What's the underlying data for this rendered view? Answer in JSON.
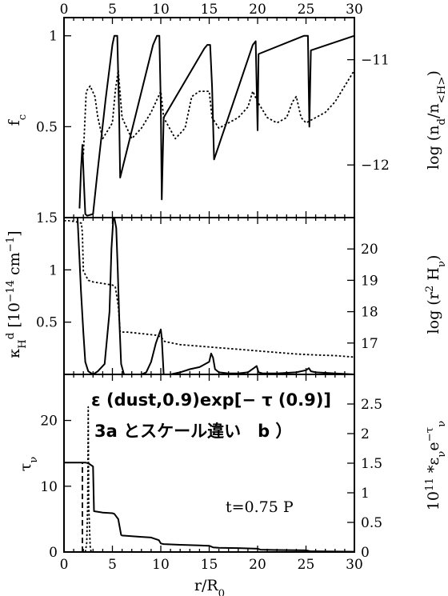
{
  "chart_data": [
    {
      "type": "line",
      "xlim": [
        0,
        30
      ],
      "top_ticks": [
        "0",
        "5",
        "10",
        "15",
        "20",
        "25",
        "30"
      ],
      "xlabel_left": "f",
      "xlabel_left_sub": "c",
      "ylabel_right": "log (n",
      "ylabel_right_sub": "d",
      "ylabel_right_tail": "/n",
      "ylabel_right_sub2": "<H>",
      "ylabel_right_close": ")",
      "ylim_left": [
        0,
        1.1
      ],
      "ylim_right": [
        -12.5,
        -10.6
      ],
      "yticks_left": [
        {
          "v": 0.5,
          "label": "0.5"
        },
        {
          "v": 1.0,
          "label": "1"
        }
      ],
      "yticks_right": [
        {
          "v": -11,
          "label": "−11"
        },
        {
          "v": -12,
          "label": "−12"
        }
      ],
      "series": [
        {
          "style": "solid",
          "axis": "left",
          "x": [
            1.6,
            1.75,
            1.9,
            2.05,
            2.2,
            2.4,
            3.0,
            3.4,
            4.3,
            5.0,
            5.2,
            5.5,
            5.7,
            5.8,
            9.2,
            9.6,
            9.85,
            10.0,
            10.1,
            10.3,
            14.5,
            14.8,
            15.1,
            15.3,
            15.5,
            19.5,
            19.8,
            20.0,
            20.1,
            24.8,
            25.2,
            25.35,
            25.5,
            30.0
          ],
          "y": [
            0.05,
            0.26,
            0.4,
            0.2,
            0.02,
            0.01,
            0.02,
            0.22,
            0.65,
            0.95,
            1.0,
            1.0,
            0.55,
            0.22,
            0.95,
            1.0,
            1.0,
            0.62,
            0.1,
            0.55,
            0.93,
            0.95,
            0.95,
            0.72,
            0.32,
            0.95,
            0.97,
            0.48,
            0.9,
            1.0,
            1.0,
            0.5,
            0.92,
            1.0
          ]
        },
        {
          "style": "dotted",
          "axis": "right",
          "x": [
            2.0,
            2.3,
            2.7,
            3.2,
            3.5,
            4.0,
            5.0,
            5.3,
            5.6,
            6.0,
            7.0,
            8.0,
            9.0,
            10.0,
            10.3,
            11.5,
            12.5,
            13.2,
            14.0,
            15.0,
            15.3,
            16.0,
            17.0,
            18.0,
            19.0,
            19.5,
            20.0,
            21.0,
            22.0,
            23.0,
            23.6,
            24.0,
            24.5,
            25.0,
            26.0,
            27.0,
            28.0,
            29.0,
            30.0
          ],
          "y": [
            -11.9,
            -11.3,
            -11.25,
            -11.35,
            -11.55,
            -11.75,
            -11.6,
            -11.3,
            -11.1,
            -11.55,
            -11.75,
            -11.65,
            -11.5,
            -11.3,
            -11.55,
            -11.75,
            -11.65,
            -11.35,
            -11.3,
            -11.3,
            -11.55,
            -11.65,
            -11.6,
            -11.55,
            -11.45,
            -11.3,
            -11.4,
            -11.55,
            -11.6,
            -11.55,
            -11.4,
            -11.35,
            -11.55,
            -11.6,
            -11.55,
            -11.5,
            -11.4,
            -11.25,
            -11.1
          ]
        }
      ]
    },
    {
      "type": "line",
      "xlim": [
        0,
        30
      ],
      "ylabel_left": "κ",
      "ylabel_left_sup": "d",
      "ylabel_left_sub": "H",
      "ylabel_left_unit": "[10",
      "ylabel_left_unit_sup": "−14",
      "ylabel_left_unit_tail": "cm",
      "ylabel_left_unit_sup2": "−1",
      "ylabel_left_close": "]",
      "ylabel_right": "log (r",
      "ylabel_right_sup": "2",
      "ylabel_right_tail": "H",
      "ylabel_right_sub": "ν",
      "ylabel_right_close": ")",
      "ylim_left": [
        0,
        1.5
      ],
      "ylim_right": [
        16,
        21
      ],
      "yticks_left": [
        {
          "v": 0.5,
          "label": "0.5"
        },
        {
          "v": 1.0,
          "label": "1"
        },
        {
          "v": 1.5,
          "label": "1.5"
        }
      ],
      "yticks_right": [
        {
          "v": 17,
          "label": "17"
        },
        {
          "v": 18,
          "label": "18"
        },
        {
          "v": 19,
          "label": "19"
        },
        {
          "v": 20,
          "label": "20"
        }
      ],
      "series": [
        {
          "style": "solid",
          "axis": "left",
          "x": [
            1.4,
            1.6,
            1.75,
            2.0,
            2.2,
            2.5,
            3.0,
            3.5,
            4.2,
            4.7,
            4.9,
            5.1,
            5.2,
            5.4,
            5.55,
            5.7,
            5.9,
            6.2,
            7.0,
            8.0,
            8.5,
            9.0,
            9.5,
            9.8,
            10.0,
            10.1,
            10.3,
            11.0,
            12.0,
            13.0,
            14.0,
            15.0,
            15.2,
            15.4,
            15.6,
            16.0,
            17.0,
            18.0,
            19.0,
            19.6,
            19.9,
            20.1,
            20.5,
            22.0,
            24.0,
            25.0,
            25.3,
            25.5,
            26.0,
            28.0,
            30.0
          ],
          "y": [
            1.5,
            1.1,
            0.8,
            0.4,
            0.12,
            0.03,
            0.0,
            0.03,
            0.1,
            0.6,
            1.2,
            1.5,
            1.5,
            1.4,
            1.0,
            0.55,
            0.1,
            0.0,
            0.0,
            0.0,
            0.02,
            0.12,
            0.3,
            0.38,
            0.43,
            0.35,
            0.0,
            0.0,
            0.02,
            0.05,
            0.07,
            0.12,
            0.2,
            0.16,
            0.05,
            0.02,
            0.01,
            0.01,
            0.02,
            0.06,
            0.08,
            0.02,
            0.01,
            0.01,
            0.02,
            0.04,
            0.06,
            0.03,
            0.02,
            0.01,
            0.0
          ]
        },
        {
          "style": "dotted",
          "axis": "right",
          "x": [
            0.0,
            0.5,
            1.0,
            1.5,
            1.8,
            1.9,
            2.0,
            2.5,
            3.0,
            4.0,
            5.0,
            5.3,
            5.6,
            5.8,
            6.5,
            8.0,
            9.5,
            10.0,
            10.4,
            12.0,
            14.0,
            16.0,
            18.0,
            20.0,
            22.0,
            24.0,
            26.0,
            28.0,
            30.0
          ],
          "y": [
            20.9,
            20.9,
            20.88,
            20.85,
            20.82,
            20.5,
            19.3,
            19.0,
            18.95,
            18.9,
            18.85,
            18.8,
            18.2,
            17.35,
            17.35,
            17.3,
            17.25,
            17.2,
            17.05,
            16.95,
            16.9,
            16.85,
            16.8,
            16.75,
            16.7,
            16.65,
            16.62,
            16.6,
            16.55
          ]
        }
      ]
    },
    {
      "type": "line",
      "xlim": [
        0,
        30
      ],
      "xticks": [
        "0",
        "5",
        "10",
        "15",
        "20",
        "25",
        "30"
      ],
      "xlabel": "r/R",
      "xlabel_sub": "0",
      "ylabel_left": "τ",
      "ylabel_left_sub": "ν",
      "ylabel_right": "10",
      "ylabel_right_sup": "11",
      "ylabel_right_tail": "*ε",
      "ylabel_right_sub": "ν",
      "ylabel_right_tail2": "e",
      "ylabel_right_sup2": "−τ",
      "ylabel_right_sup2_sub": "ν",
      "ylim_left": [
        0,
        27
      ],
      "ylim_right": [
        0,
        3.0
      ],
      "yticks_left": [
        {
          "v": 0,
          "label": "0"
        },
        {
          "v": 10,
          "label": "10"
        },
        {
          "v": 20,
          "label": "20"
        }
      ],
      "yticks_right": [
        {
          "v": 0,
          "label": "0"
        },
        {
          "v": 0.5,
          "label": "0.5"
        },
        {
          "v": 1.0,
          "label": "1"
        },
        {
          "v": 1.5,
          "label": "1.5"
        },
        {
          "v": 2.0,
          "label": "2"
        },
        {
          "v": 2.5,
          "label": "2.5"
        }
      ],
      "annotation": "t=0.75 P",
      "series": [
        {
          "style": "solid",
          "axis": "left",
          "x": [
            0.0,
            1.0,
            2.0,
            2.2,
            2.5,
            3.0,
            3.1,
            4.0,
            5.0,
            5.2,
            5.6,
            5.9,
            6.0,
            7.0,
            8.0,
            9.0,
            9.8,
            10.0,
            10.3,
            12.0,
            14.0,
            15.0,
            15.4,
            16.0,
            18.0,
            20.0,
            20.3,
            22.0,
            24.0,
            25.0,
            25.4,
            27.0,
            30.0
          ],
          "y": [
            13.6,
            13.6,
            13.6,
            13.6,
            13.5,
            13.0,
            6.2,
            6.0,
            5.9,
            5.8,
            5.0,
            2.6,
            2.5,
            2.4,
            2.3,
            2.2,
            1.8,
            1.3,
            1.2,
            1.1,
            1.0,
            0.95,
            0.7,
            0.65,
            0.6,
            0.5,
            0.35,
            0.3,
            0.28,
            0.25,
            0.12,
            0.08,
            0.05
          ]
        },
        {
          "style": "dashed",
          "axis": "left",
          "x": [
            1.9,
            1.9
          ],
          "y": [
            0,
            13.6
          ]
        },
        {
          "style": "dotted",
          "axis": "right",
          "x": [
            2.2,
            2.35,
            2.45,
            2.5,
            2.55,
            2.7,
            2.8
          ],
          "y": [
            0.0,
            0.15,
            0.8,
            2.45,
            0.8,
            0.1,
            0.0
          ]
        }
      ]
    }
  ],
  "annotations": {
    "line1": "ε (dust,0.9)exp[− τ (0.9)]",
    "line2": "3a とスケール違い　b ）"
  }
}
